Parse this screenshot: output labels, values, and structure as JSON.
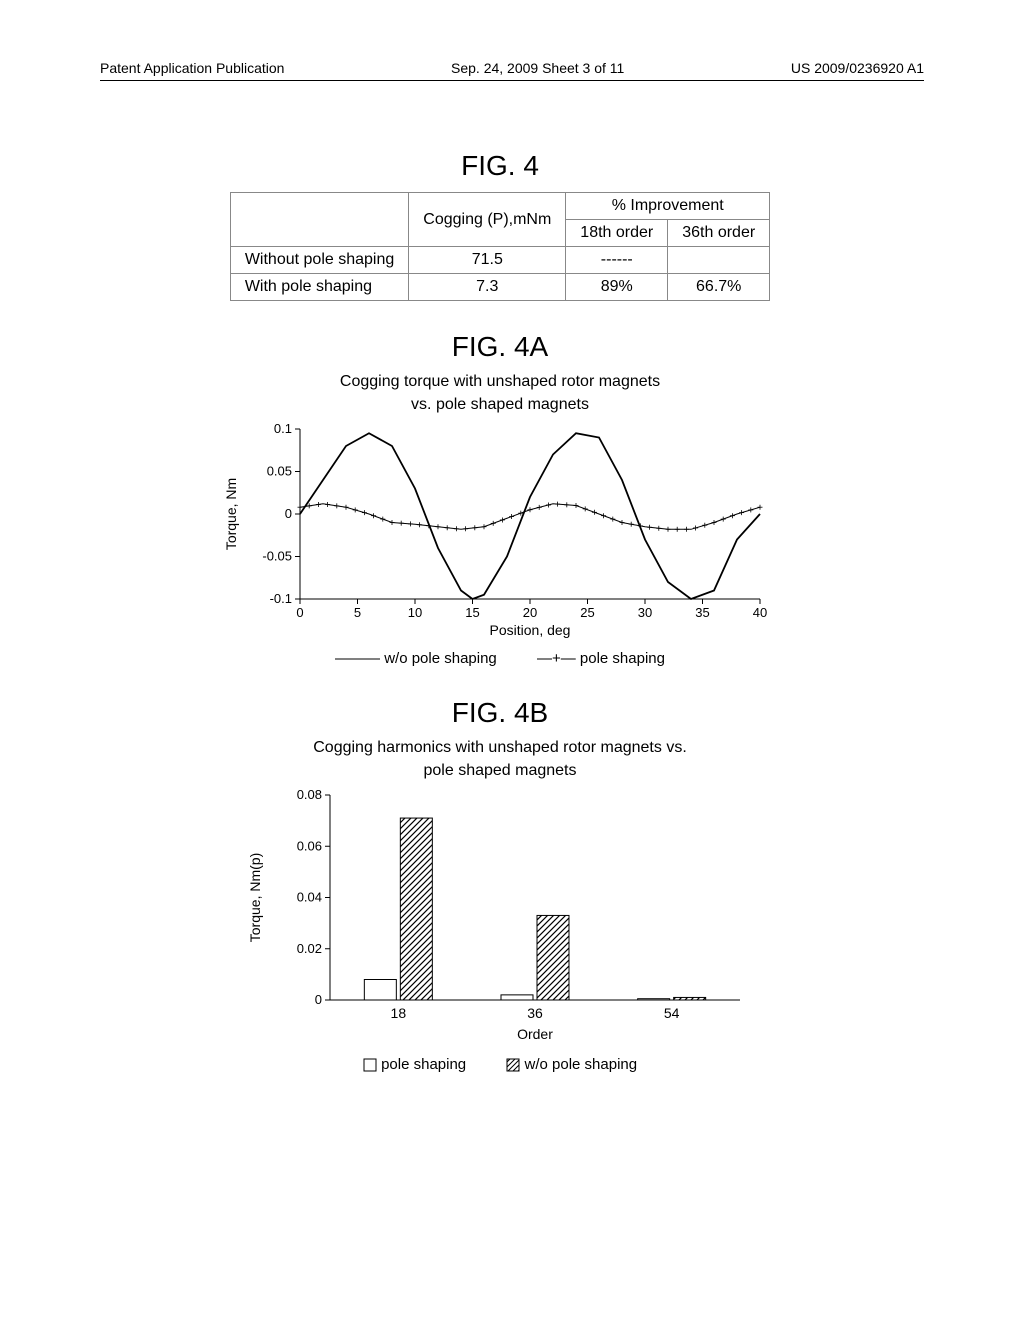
{
  "header": {
    "left": "Patent Application Publication",
    "center": "Sep. 24, 2009  Sheet 3 of 11",
    "right": "US 2009/0236920 A1"
  },
  "fig4": {
    "title": "FIG. 4",
    "columns": [
      "",
      "Cogging (P),mNm",
      "% Improvement"
    ],
    "subcolumns": [
      "18th order",
      "36th order"
    ],
    "rows": [
      {
        "label": "Without pole shaping",
        "cogging": "71.5",
        "o18": "------",
        "o36": ""
      },
      {
        "label": "With pole shaping",
        "cogging": "7.3",
        "o18": "89%",
        "o36": "66.7%"
      }
    ]
  },
  "fig4a": {
    "title": "FIG. 4A",
    "subtitle1": "Cogging torque with unshaped rotor magnets",
    "subtitle2": "vs. pole shaped magnets",
    "ylabel": "Torque, Nm",
    "xlabel": "Position, deg",
    "yticks": [
      -0.1,
      -0.05,
      0,
      0.05,
      0.1
    ],
    "xticks": [
      0,
      5,
      10,
      15,
      20,
      25,
      30,
      35,
      40
    ],
    "xlim": [
      0,
      40
    ],
    "ylim": [
      -0.1,
      0.1
    ],
    "legend": [
      "w/o pole shaping",
      "pole shaping"
    ],
    "series_wo": [
      [
        0,
        0
      ],
      [
        2,
        0.04
      ],
      [
        4,
        0.08
      ],
      [
        6,
        0.095
      ],
      [
        8,
        0.08
      ],
      [
        10,
        0.03
      ],
      [
        12,
        -0.04
      ],
      [
        14,
        -0.09
      ],
      [
        15,
        -0.1
      ],
      [
        16,
        -0.095
      ],
      [
        18,
        -0.05
      ],
      [
        20,
        0.02
      ],
      [
        22,
        0.07
      ],
      [
        24,
        0.095
      ],
      [
        26,
        0.09
      ],
      [
        28,
        0.04
      ],
      [
        30,
        -0.03
      ],
      [
        32,
        -0.08
      ],
      [
        34,
        -0.1
      ],
      [
        36,
        -0.09
      ],
      [
        38,
        -0.03
      ],
      [
        40,
        0.0
      ]
    ],
    "series_pole": [
      [
        0,
        0.008
      ],
      [
        2,
        0.012
      ],
      [
        4,
        0.008
      ],
      [
        6,
        0.0
      ],
      [
        8,
        -0.01
      ],
      [
        10,
        -0.012
      ],
      [
        12,
        -0.015
      ],
      [
        14,
        -0.018
      ],
      [
        16,
        -0.015
      ],
      [
        18,
        -0.005
      ],
      [
        20,
        0.005
      ],
      [
        22,
        0.012
      ],
      [
        24,
        0.01
      ],
      [
        26,
        0.0
      ],
      [
        28,
        -0.01
      ],
      [
        30,
        -0.015
      ],
      [
        32,
        -0.018
      ],
      [
        34,
        -0.018
      ],
      [
        36,
        -0.01
      ],
      [
        38,
        0.0
      ],
      [
        40,
        0.008
      ]
    ],
    "colors": {
      "line": "#000000",
      "bg": "#ffffff"
    }
  },
  "fig4b": {
    "title": "FIG. 4B",
    "subtitle1": "Cogging harmonics with unshaped rotor magnets vs.",
    "subtitle2": "pole shaped magnets",
    "ylabel": "Torque, Nm(p)",
    "xlabel": "Order",
    "yticks": [
      0,
      0.02,
      0.04,
      0.06,
      0.08
    ],
    "xticks": [
      18,
      36,
      54
    ],
    "ylim": [
      0,
      0.08
    ],
    "legend": [
      "pole shaping",
      "w/o pole shaping"
    ],
    "bars": [
      {
        "x": 18,
        "pole": 0.008,
        "wo": 0.071
      },
      {
        "x": 36,
        "pole": 0.002,
        "wo": 0.033
      },
      {
        "x": 54,
        "pole": 0.0005,
        "wo": 0.001
      }
    ],
    "colors": {
      "pole_fill": "#ffffff",
      "wo_fill_hatch": "#000000",
      "stroke": "#000000"
    }
  }
}
